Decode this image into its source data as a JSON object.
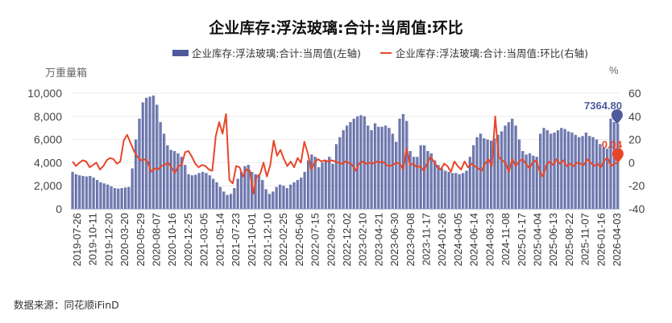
{
  "title": "企业库存:浮法玻璃:合计:当周值:环比",
  "legend": [
    {
      "label": "企业库存:浮法玻璃:合计:当周值(左轴)",
      "color": "#4e5a9b",
      "type": "bar"
    },
    {
      "label": "企业库存:浮法玻璃:合计:当周值:环比(右轴)",
      "color": "#e8462a",
      "type": "line"
    }
  ],
  "left_unit": "万重量箱",
  "right_unit": "%",
  "source": "数据来源：同花顺iFinD",
  "colors": {
    "bar": "#4e5a9b",
    "line": "#e8462a",
    "grid": "#ececec"
  },
  "chart_data": {
    "type": "bar+line",
    "title": "企业库存:浮法玻璃:合计:当周值:环比",
    "xlabel": "",
    "ylabel_left": "万重量箱",
    "ylabel_right": "%",
    "ylim_left": [
      0,
      10000
    ],
    "ylim_right": [
      -40,
      60
    ],
    "yticks_left": [
      "10,000",
      "8,000",
      "6,000",
      "4,000",
      "2,000",
      "0"
    ],
    "yticks_right": [
      "60",
      "40",
      "20",
      "0",
      "-20",
      "-40"
    ],
    "x_tick_labels": [
      "2019-07-26",
      "2019-10-11",
      "2019-12-20",
      "2020-03-20",
      "2020-05-29",
      "2020-08-07",
      "2020-10-16",
      "2020-12-25",
      "2021-03-05",
      "2021-05-14",
      "2021-07-23",
      "2021-10-01",
      "2021-12-10",
      "2022-02-25",
      "2022-05-06",
      "2022-07-15",
      "2022-09-23",
      "2022-12-02",
      "2023-02-10",
      "2023-04-21",
      "2023-06-30",
      "2023-09-08",
      "2023-11-17",
      "2024-01-26",
      "2024-04-05",
      "2024-06-14",
      "2024-08-23",
      "2024-11-08",
      "2025-01-17",
      "2025-04-04",
      "2025-06-13",
      "2025-08-22",
      "2025-11-07",
      "2026-01-16",
      "2026-04-03"
    ],
    "grid": true,
    "legend_position": "top",
    "annotations": [
      {
        "series": "当周值",
        "label": "7364.80",
        "color": "#4e5a9b"
      },
      {
        "series": "环比",
        "label": "0.04",
        "color": "#e8462a"
      }
    ],
    "series": [
      {
        "name": "企业库存:浮法玻璃:合计:当周值(左轴)",
        "axis": "left",
        "type": "bar",
        "note": "bi-weekly sampled estimate",
        "values": [
          3200,
          3000,
          2900,
          2850,
          2800,
          2850,
          2700,
          2500,
          2300,
          2200,
          2100,
          1950,
          1800,
          1750,
          1800,
          1850,
          1900,
          3500,
          6000,
          7800,
          9200,
          9600,
          9700,
          9800,
          9000,
          7500,
          6500,
          5500,
          5100,
          5000,
          4800,
          4500,
          3800,
          3000,
          2900,
          2950,
          3100,
          3200,
          3100,
          2900,
          2600,
          2300,
          1900,
          1500,
          1200,
          1300,
          1800,
          2600,
          3200,
          3700,
          3800,
          3200,
          3000,
          2900,
          2500,
          1700,
          1300,
          1500,
          1900,
          2100,
          2000,
          1800,
          2100,
          2300,
          2500,
          2700,
          3200,
          4200,
          4700,
          4500,
          3600,
          4000,
          4200,
          4500,
          3900,
          5600,
          6200,
          6800,
          7200,
          7500,
          7800,
          8000,
          8100,
          8000,
          7200,
          6800,
          7400,
          7100,
          7100,
          7200,
          7000,
          6500,
          5800,
          7800,
          8200,
          7600,
          5000,
          4500,
          4500,
          5500,
          5500,
          5000,
          4800,
          4200,
          3800,
          3500,
          3300,
          3200,
          3100,
          3100,
          3000,
          3100,
          3300,
          4500,
          5500,
          6200,
          6500,
          6100,
          6000,
          5900,
          6100,
          6400,
          6700,
          7200,
          7500,
          7800,
          7200,
          6000,
          5000,
          4700,
          4800,
          4600,
          4500,
          6500,
          7000,
          6800,
          6500,
          6600,
          6800,
          7000,
          6900,
          6700,
          6600,
          6400,
          6200,
          6300,
          6600,
          6300,
          6200,
          6000,
          5600,
          5300,
          5200,
          7800,
          7500,
          7365
        ]
      },
      {
        "name": "企业库存:浮法玻璃:合计:当周值:环比(右轴)",
        "axis": "right",
        "type": "line",
        "note": "bi-weekly sampled estimate",
        "values": [
          1,
          -3,
          0,
          2,
          1,
          -4,
          -2,
          0,
          -6,
          -3,
          2,
          4,
          3,
          -1,
          1,
          19,
          24,
          17,
          10,
          5,
          2,
          3,
          1,
          -8,
          -5,
          -6,
          -3,
          -2,
          0,
          -4,
          -9,
          -3,
          -2,
          9,
          10,
          5,
          -1,
          -4,
          -2,
          -3,
          -6,
          -7,
          23,
          35,
          25,
          42,
          -15,
          -18,
          -3,
          -4,
          -12,
          -6,
          -7,
          -27,
          -12,
          -10,
          0,
          -12,
          -2,
          19,
          6,
          11,
          3,
          -3,
          1,
          -4,
          4,
          0,
          18,
          8,
          -6,
          0,
          3,
          1,
          2,
          1,
          2,
          1,
          0,
          -1,
          1,
          0,
          -2,
          -7,
          -1,
          1,
          -1,
          0,
          -1,
          1,
          0,
          1,
          -2,
          -3,
          -2,
          0,
          -1,
          -6,
          12,
          -2,
          -1,
          -4,
          -3,
          -7,
          -1,
          5,
          1,
          -4,
          -6,
          -1,
          -3,
          -8,
          1,
          -3,
          -6,
          1,
          -4,
          -1,
          -3,
          -5,
          -7,
          -1,
          3,
          -3,
          40,
          5,
          2,
          0,
          -8,
          3,
          -3,
          1,
          3,
          -1,
          -5,
          0,
          2,
          -7,
          -12,
          -2,
          1,
          -2,
          3,
          -1,
          2,
          -3,
          -1,
          -3,
          0,
          -1,
          -2,
          3,
          0,
          -3,
          -1,
          -4,
          2,
          4,
          -3,
          -1,
          0.04
        ]
      }
    ]
  }
}
